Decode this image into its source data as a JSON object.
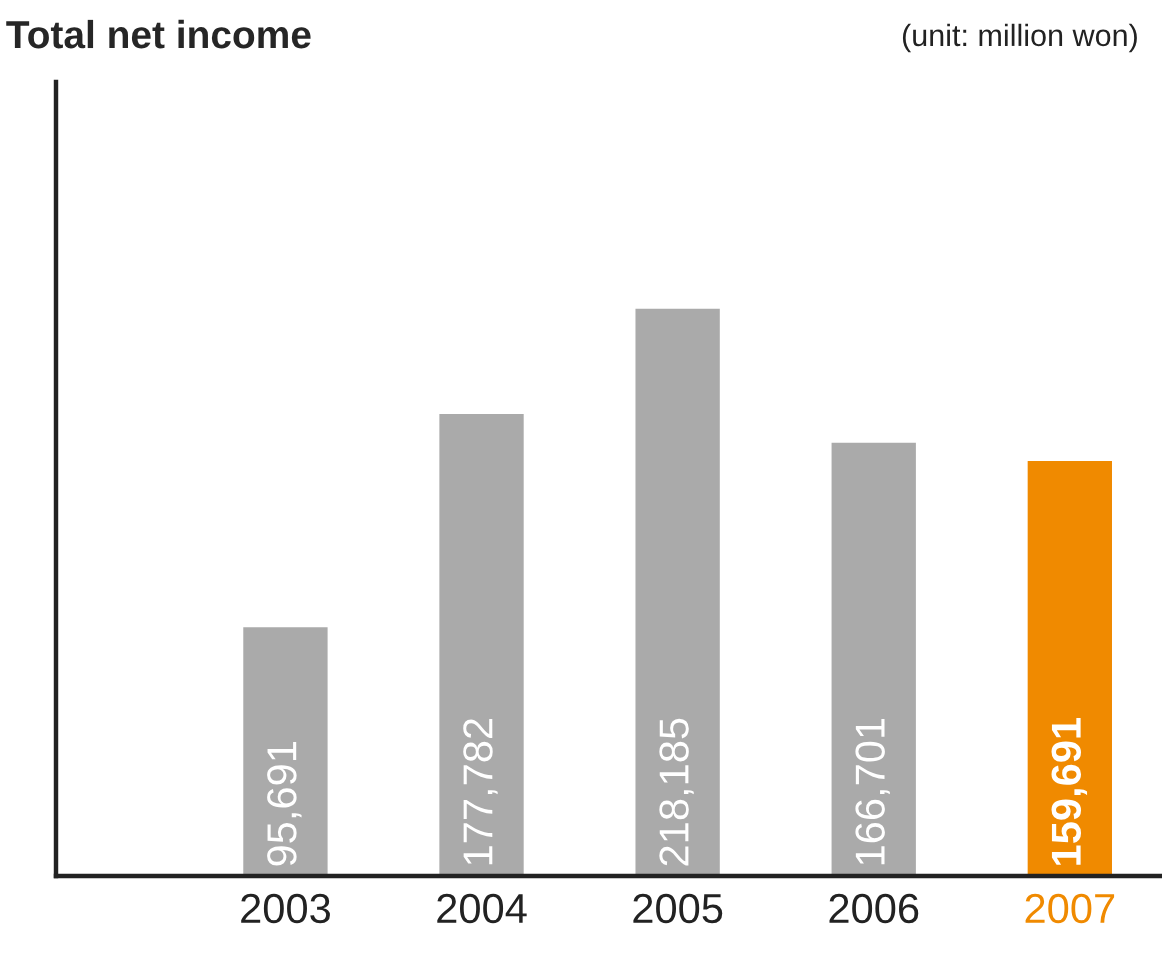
{
  "chart_data": {
    "type": "bar",
    "title": "Total net income",
    "annotations": [
      "(unit: million won)"
    ],
    "categories": [
      "2003",
      "2004",
      "2005",
      "2006",
      "2007"
    ],
    "values": [
      95691,
      177782,
      218185,
      166701,
      159691
    ],
    "value_labels": [
      "95,691",
      "177,782",
      "218,185",
      "166,701",
      "159,691"
    ],
    "colors": [
      "#aaaaaa",
      "#aaaaaa",
      "#aaaaaa",
      "#aaaaaa",
      "#f08a00"
    ],
    "grid": false,
    "legend": false
  }
}
